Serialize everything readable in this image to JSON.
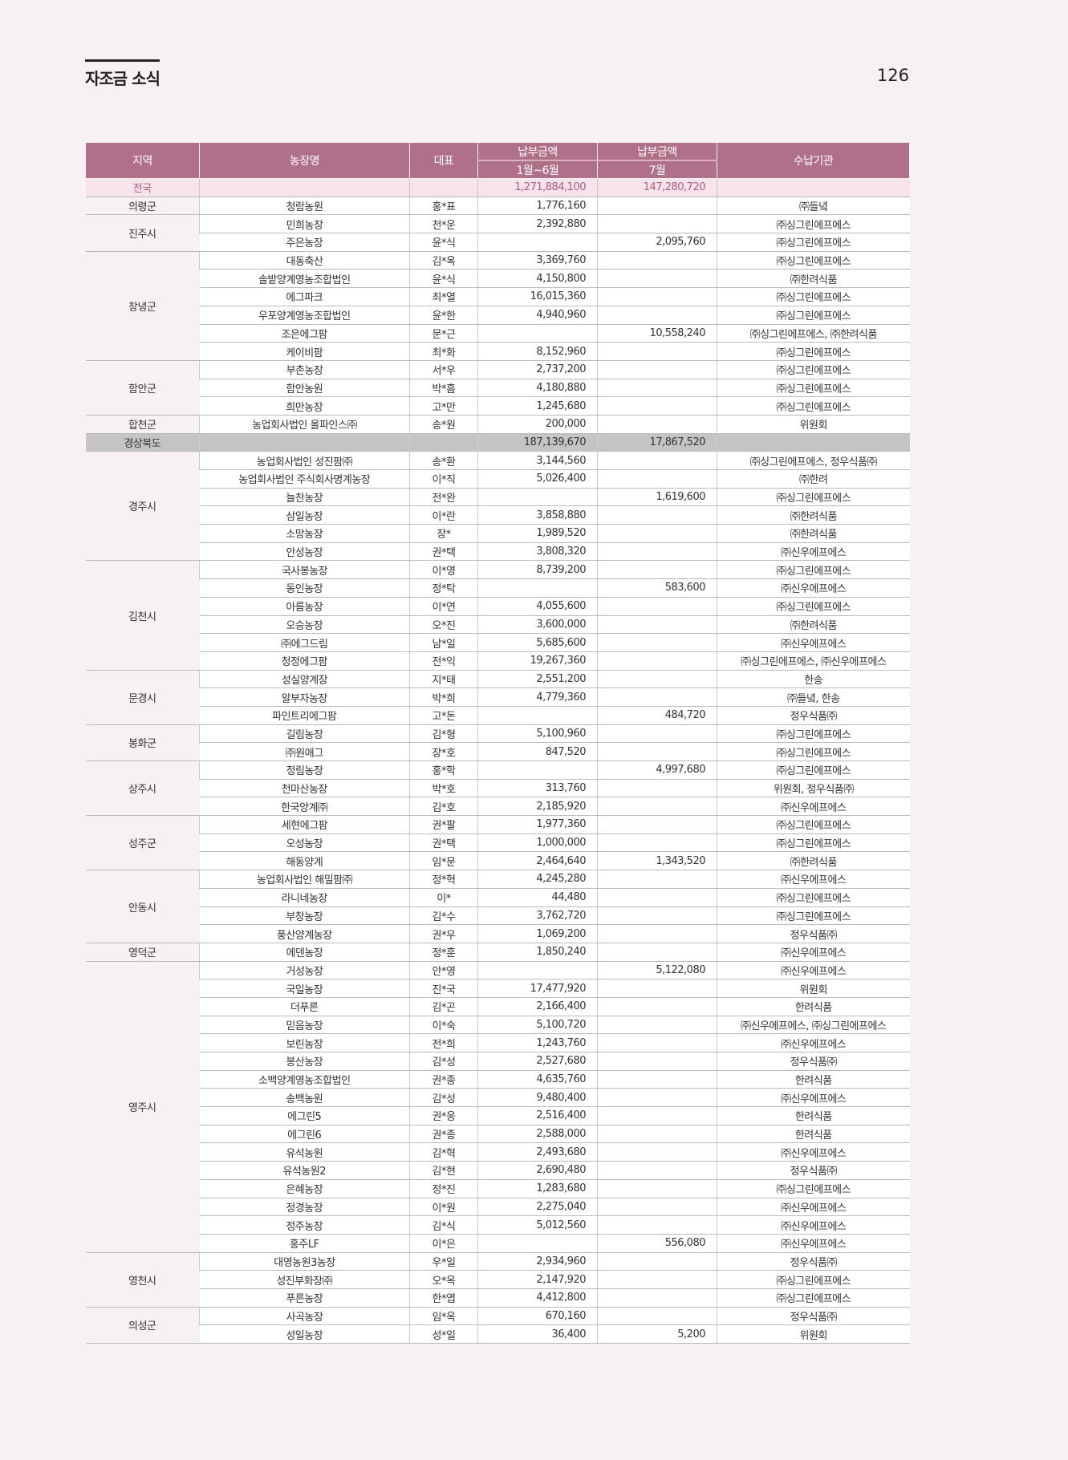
{
  "page": {
    "section_title": "자조금 소식",
    "page_number": "126"
  },
  "colors": {
    "header": "#b07089",
    "national_row": "#f6e3eb",
    "province_row": "#c4c4c4",
    "background": "#f8f1f4"
  },
  "table": {
    "headers": {
      "region": "지역",
      "farm": "농장명",
      "rep": "대표",
      "amount_label": "납부금액",
      "period1": "1월~6월",
      "period2": "7월",
      "agency": "수납기관"
    },
    "sections": [
      {
        "type": "national",
        "label": "전국",
        "jan_jun": "1,271,884,100",
        "jul": "147,280,720"
      },
      {
        "type": "groups",
        "groups": [
          {
            "region": "의령군",
            "rows": [
              [
                "청람농원",
                "홍*표",
                "1,776,160",
                "",
                "㈜들녘"
              ]
            ]
          },
          {
            "region": "진주시",
            "rows": [
              [
                "민희농장",
                "천*운",
                "2,392,880",
                "",
                "㈜싱그린에프에스"
              ],
              [
                "주은농장",
                "윤*식",
                "",
                "2,095,760",
                "㈜싱그린에프에스"
              ]
            ]
          },
          {
            "region": "창녕군",
            "rows": [
              [
                "대동축산",
                "김*옥",
                "3,369,760",
                "",
                "㈜싱그린에프에스"
              ],
              [
                "솔밭양계영농조합법인",
                "윤*식",
                "4,150,800",
                "",
                "㈜한려식품"
              ],
              [
                "에그파크",
                "최*열",
                "16,015,360",
                "",
                "㈜싱그린에프에스"
              ],
              [
                "우포양계영농조합법인",
                "윤*한",
                "4,940,960",
                "",
                "㈜싱그린에프에스"
              ],
              [
                "조은에그팜",
                "문*근",
                "",
                "10,558,240",
                "㈜싱그린에프에스, ㈜한려식품"
              ],
              [
                "케이비팜",
                "최*화",
                "8,152,960",
                "",
                "㈜싱그린에프에스"
              ]
            ]
          },
          {
            "region": "함안군",
            "rows": [
              [
                "부촌농장",
                "서*우",
                "2,737,200",
                "",
                "㈜싱그린에프에스"
              ],
              [
                "함안농원",
                "박*흠",
                "4,180,880",
                "",
                "㈜싱그린에프에스"
              ],
              [
                "희만농장",
                "고*만",
                "1,245,680",
                "",
                "㈜싱그린에프에스"
              ]
            ]
          },
          {
            "region": "합천군",
            "rows": [
              [
                "농업회사법인 올파인스㈜",
                "송*원",
                "200,000",
                "",
                "위원회"
              ]
            ]
          }
        ]
      },
      {
        "type": "province",
        "label": "경상북도",
        "jan_jun": "187,139,670",
        "jul": "17,867,520"
      },
      {
        "type": "groups",
        "groups": [
          {
            "region": "경주시",
            "rows": [
              [
                "농업회사법인 성진팜㈜",
                "송*환",
                "3,144,560",
                "",
                "㈜싱그린에프에스, 정우식품㈜"
              ],
              [
                "농업회사법인 주식회사명계농장",
                "이*직",
                "5,026,400",
                "",
                "㈜한려"
              ],
              [
                "늘찬농장",
                "전*완",
                "",
                "1,619,600",
                "㈜싱그린에프에스"
              ],
              [
                "삼일농장",
                "이*란",
                "3,858,880",
                "",
                "㈜한려식품"
              ],
              [
                "소망농장",
                "장*",
                "1,989,520",
                "",
                "㈜한려식품"
              ],
              [
                "안성농장",
                "권*택",
                "3,808,320",
                "",
                "㈜신우에프에스"
              ]
            ]
          },
          {
            "region": "김천시",
            "rows": [
              [
                "국사봉농장",
                "이*영",
                "8,739,200",
                "",
                "㈜싱그린에프에스"
              ],
              [
                "동인농장",
                "정*탁",
                "",
                "583,600",
                "㈜신우에프에스"
              ],
              [
                "아름농장",
                "이*연",
                "4,055,600",
                "",
                "㈜싱그린에프에스"
              ],
              [
                "오승농장",
                "오*진",
                "3,600,000",
                "",
                "㈜한려식품"
              ],
              [
                "㈜에그드림",
                "남*일",
                "5,685,600",
                "",
                "㈜신우에프에스"
              ],
              [
                "청정에그팜",
                "전*익",
                "19,267,360",
                "",
                "㈜싱그린에프에스, ㈜신우에프에스"
              ]
            ]
          },
          {
            "region": "문경시",
            "rows": [
              [
                "성실양계장",
                "지*태",
                "2,551,200",
                "",
                "한송"
              ],
              [
                "알부자농장",
                "박*희",
                "4,779,360",
                "",
                "㈜들녘, 한송"
              ],
              [
                "파인트리에그팜",
                "고*돈",
                "",
                "484,720",
                "정우식품㈜"
              ]
            ]
          },
          {
            "region": "봉화군",
            "rows": [
              [
                "길림농장",
                "김*형",
                "5,100,960",
                "",
                "㈜싱그린에프에스"
              ],
              [
                "㈜원애그",
                "장*호",
                "847,520",
                "",
                "㈜싱그린에프에스"
              ]
            ]
          },
          {
            "region": "상주시",
            "rows": [
              [
                "정림농장",
                "홍*학",
                "",
                "4,997,680",
                "㈜싱그린에프에스"
              ],
              [
                "천마산농장",
                "박*호",
                "313,760",
                "",
                "위원회, 정우식품㈜"
              ],
              [
                "한국양계㈜",
                "김*호",
                "2,185,920",
                "",
                "㈜신우에프에스"
              ]
            ]
          },
          {
            "region": "성주군",
            "rows": [
              [
                "세현에그팜",
                "권*팔",
                "1,977,360",
                "",
                "㈜싱그린에프에스"
              ],
              [
                "오성농장",
                "권*택",
                "1,000,000",
                "",
                "㈜싱그린에프에스"
              ],
              [
                "해동양계",
                "임*문",
                "2,464,640",
                "1,343,520",
                "㈜한려식품"
              ]
            ]
          },
          {
            "region": "안동시",
            "rows": [
              [
                "농업회사법인 해밀팜㈜",
                "정*혁",
                "4,245,280",
                "",
                "㈜신우에프에스"
              ],
              [
                "라니네농장",
                "이*",
                "44,480",
                "",
                "㈜싱그린에프에스"
              ],
              [
                "부창농장",
                "김*수",
                "3,762,720",
                "",
                "㈜싱그린에프에스"
              ],
              [
                "풍산양계농장",
                "권*우",
                "1,069,200",
                "",
                "정우식품㈜"
              ]
            ]
          },
          {
            "region": "영덕군",
            "rows": [
              [
                "에덴농장",
                "정*훈",
                "1,850,240",
                "",
                "㈜신우에프에스"
              ]
            ]
          },
          {
            "region": "영주시",
            "rows": [
              [
                "거성농장",
                "안*영",
                "",
                "5,122,080",
                "㈜신우에프에스"
              ],
              [
                "국일농장",
                "진*국",
                "17,477,920",
                "",
                "위원회"
              ],
              [
                "더푸른",
                "김*곤",
                "2,166,400",
                "",
                "한려식품"
              ],
              [
                "믿음농장",
                "이*숙",
                "5,100,720",
                "",
                "㈜신우에프에스, ㈜싱그린에프에스"
              ],
              [
                "보린농장",
                "전*희",
                "1,243,760",
                "",
                "㈜신우에프에스"
              ],
              [
                "봉산농장",
                "김*성",
                "2,527,680",
                "",
                "정우식품㈜"
              ],
              [
                "소백양계영농조합법인",
                "권*종",
                "4,635,760",
                "",
                "한려식품"
              ],
              [
                "송백농원",
                "김*성",
                "9,480,400",
                "",
                "㈜신우에프에스"
              ],
              [
                "에그린5",
                "권*웅",
                "2,516,400",
                "",
                "한려식품"
              ],
              [
                "에그린6",
                "권*종",
                "2,588,000",
                "",
                "한려식품"
              ],
              [
                "유석농원",
                "김*혁",
                "2,493,680",
                "",
                "㈜신우에프에스"
              ],
              [
                "유석농원2",
                "김*현",
                "2,690,480",
                "",
                "정우식품㈜"
              ],
              [
                "은혜농장",
                "정*진",
                "1,283,680",
                "",
                "㈜싱그린에프에스"
              ],
              [
                "정경농장",
                "이*원",
                "2,275,040",
                "",
                "㈜신우에프에스"
              ],
              [
                "정주농장",
                "김*식",
                "5,012,560",
                "",
                "㈜신우에프에스"
              ],
              [
                "홍주LF",
                "이*은",
                "",
                "556,080",
                "㈜신우에프에스"
              ]
            ]
          },
          {
            "region": "영천시",
            "rows": [
              [
                "대영농원3농장",
                "우*일",
                "2,934,960",
                "",
                "정우식품㈜"
              ],
              [
                "성진부화장㈜",
                "오*옥",
                "2,147,920",
                "",
                "㈜싱그린에프에스"
              ],
              [
                "푸른농장",
                "한*엽",
                "4,412,800",
                "",
                "㈜싱그린에프에스"
              ]
            ]
          },
          {
            "region": "의성군",
            "rows": [
              [
                "사곡농장",
                "임*옥",
                "670,160",
                "",
                "정우식품㈜"
              ],
              [
                "성일농장",
                "성*일",
                "36,400",
                "5,200",
                "위원회"
              ]
            ]
          }
        ]
      }
    ]
  }
}
